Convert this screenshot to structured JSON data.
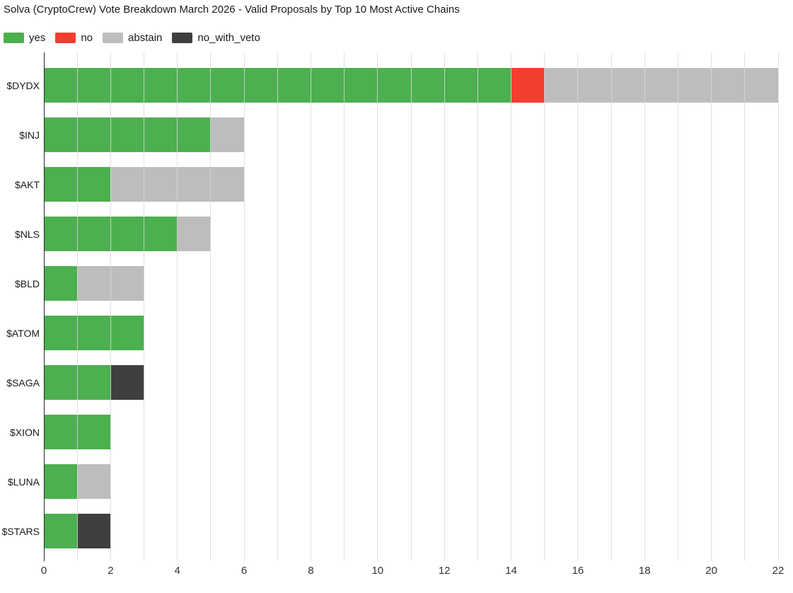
{
  "page": {
    "background": "#ffffff"
  },
  "chart_data": {
    "type": "bar",
    "orientation": "horizontal",
    "stacked": true,
    "title": "Solva (CryptoCrew) Vote Breakdown March 2026 - Valid Proposals by Top 10 Most Active Chains",
    "categories": [
      "$DYDX",
      "$INJ",
      "$AKT",
      "$NLS",
      "$BLD",
      "$ATOM",
      "$SAGA",
      "$XION",
      "$LUNA",
      "$STARS"
    ],
    "series": [
      {
        "name": "yes",
        "color": "#4caf50",
        "values": [
          14,
          5,
          2,
          4,
          1,
          3,
          2,
          2,
          1,
          1
        ]
      },
      {
        "name": "no",
        "color": "#f33d2f",
        "values": [
          1,
          0,
          0,
          0,
          0,
          0,
          0,
          0,
          0,
          0
        ]
      },
      {
        "name": "abstain",
        "color": "#bdbdbd",
        "values": [
          7,
          1,
          4,
          1,
          2,
          0,
          0,
          0,
          1,
          0
        ]
      },
      {
        "name": "no_with_veto",
        "color": "#3f3f3f",
        "values": [
          0,
          0,
          0,
          0,
          0,
          0,
          1,
          0,
          0,
          1
        ]
      }
    ],
    "totals": [
      22,
      6,
      6,
      5,
      3,
      3,
      3,
      2,
      2,
      2
    ],
    "xlim": [
      0,
      22
    ],
    "x_ticks": [
      0,
      2,
      4,
      6,
      8,
      10,
      12,
      14,
      16,
      18,
      20,
      22
    ],
    "gridline_step": 1,
    "grid": true,
    "legend_position": "top-left",
    "colors": {
      "grid": "#dbdbdb",
      "axis": "#262626",
      "title_text": "#1a1a1a",
      "tick_text": "#333333"
    }
  }
}
